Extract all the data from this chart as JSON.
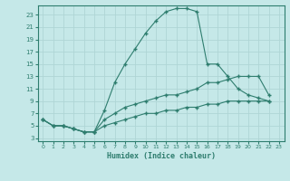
{
  "background_color": "#c5e8e8",
  "grid_color": "#afd5d5",
  "line_color": "#2e7d6e",
  "xlabel": "Humidex (Indice chaleur)",
  "xlim": [
    -0.5,
    23.5
  ],
  "ylim": [
    2.5,
    24.5
  ],
  "xticks": [
    0,
    1,
    2,
    3,
    4,
    5,
    6,
    7,
    8,
    9,
    10,
    11,
    12,
    13,
    14,
    15,
    16,
    17,
    18,
    19,
    20,
    21,
    22,
    23
  ],
  "yticks": [
    3,
    5,
    7,
    9,
    11,
    13,
    15,
    17,
    19,
    21,
    23
  ],
  "line1_x": [
    0,
    1,
    2,
    3,
    4,
    5,
    6,
    7,
    8,
    9,
    10,
    11,
    12,
    13,
    14,
    15,
    16,
    17,
    18,
    19,
    20,
    21,
    22
  ],
  "line1_y": [
    6,
    5,
    5,
    4.5,
    4,
    4,
    7.5,
    12,
    15,
    17.5,
    20,
    22,
    23.5,
    24,
    24,
    23.5,
    15,
    15,
    13,
    11,
    10,
    9.5,
    9
  ],
  "line2_x": [
    0,
    1,
    2,
    3,
    4,
    5,
    6,
    7,
    8,
    9,
    10,
    11,
    12,
    13,
    14,
    15,
    16,
    17,
    18,
    19,
    20,
    21,
    22
  ],
  "line2_y": [
    6,
    5,
    5,
    4.5,
    4,
    4,
    6,
    7,
    8,
    8.5,
    9,
    9.5,
    10,
    10,
    10.5,
    11,
    12,
    12,
    12.5,
    13,
    13,
    13,
    10
  ],
  "line3_x": [
    0,
    1,
    2,
    3,
    4,
    5,
    6,
    7,
    8,
    9,
    10,
    11,
    12,
    13,
    14,
    15,
    16,
    17,
    18,
    19,
    20,
    21,
    22
  ],
  "line3_y": [
    6,
    5,
    5,
    4.5,
    4,
    4,
    5,
    5.5,
    6,
    6.5,
    7,
    7,
    7.5,
    7.5,
    8,
    8,
    8.5,
    8.5,
    9,
    9,
    9,
    9,
    9
  ]
}
